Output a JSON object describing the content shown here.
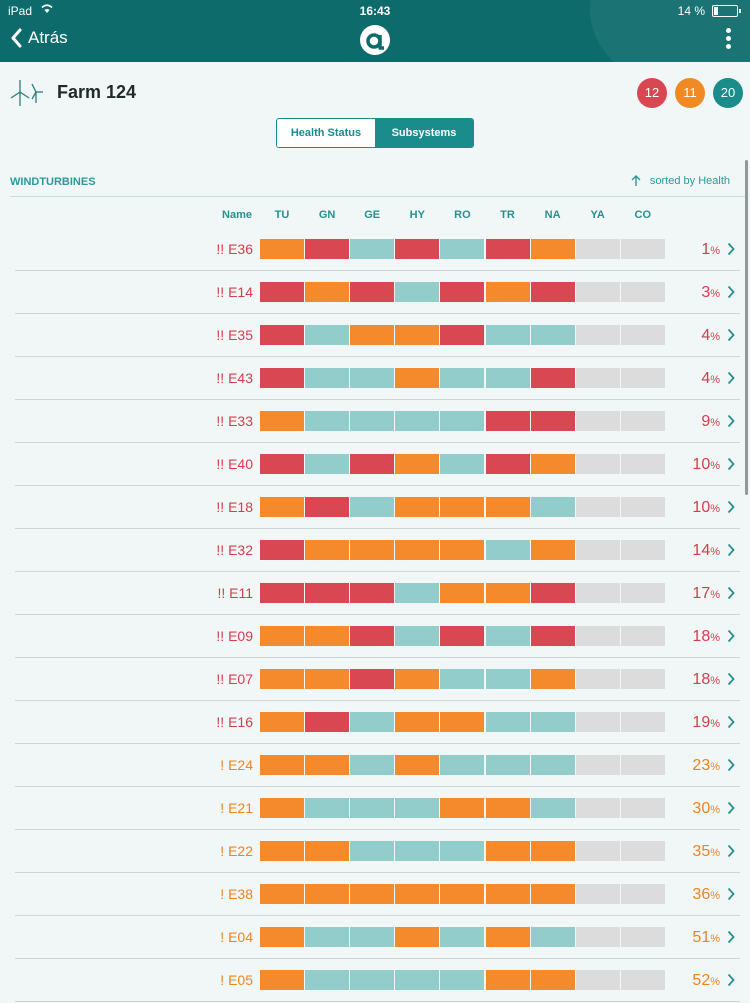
{
  "status_bar": {
    "device": "iPad",
    "time": "16:43",
    "battery": "14 %"
  },
  "header": {
    "back_label": "Atrás"
  },
  "farm": {
    "name": "Farm 124"
  },
  "badges": {
    "red": "12",
    "orange": "11",
    "teal": "20"
  },
  "tabs": {
    "health_status": "Health Status",
    "subsystems": "Subsystems",
    "active": "Subsystems"
  },
  "section": {
    "title": "WINDTURBINES",
    "sort_label": "sorted by Health"
  },
  "columns": {
    "name": "Name",
    "subsystems": [
      "TU",
      "GN",
      "GE",
      "HY",
      "RO",
      "TR",
      "NA",
      "YA",
      "CO"
    ]
  },
  "colors": {
    "red": "#d94752",
    "orange": "#f58a2c",
    "teal": "#92cccb",
    "gray": "#dcdcdc",
    "header": "#0e6b6b",
    "accent": "#1a8c8c"
  },
  "rows": [
    {
      "name": "!! E36",
      "level": "crit",
      "pct": "1",
      "cells": [
        "orange",
        "red",
        "teal",
        "red",
        "teal",
        "red",
        "orange",
        "gray",
        "gray"
      ]
    },
    {
      "name": "!! E14",
      "level": "crit",
      "pct": "3",
      "cells": [
        "red",
        "orange",
        "red",
        "teal",
        "red",
        "orange",
        "red",
        "gray",
        "gray"
      ]
    },
    {
      "name": "!! E35",
      "level": "crit",
      "pct": "4",
      "cells": [
        "red",
        "teal",
        "orange",
        "orange",
        "red",
        "teal",
        "teal",
        "gray",
        "gray"
      ]
    },
    {
      "name": "!! E43",
      "level": "crit",
      "pct": "4",
      "cells": [
        "red",
        "teal",
        "teal",
        "orange",
        "teal",
        "teal",
        "red",
        "gray",
        "gray"
      ]
    },
    {
      "name": "!! E33",
      "level": "crit",
      "pct": "9",
      "cells": [
        "orange",
        "teal",
        "teal",
        "teal",
        "teal",
        "red",
        "red",
        "gray",
        "gray"
      ]
    },
    {
      "name": "!! E40",
      "level": "crit",
      "pct": "10",
      "cells": [
        "red",
        "teal",
        "red",
        "orange",
        "teal",
        "red",
        "orange",
        "gray",
        "gray"
      ]
    },
    {
      "name": "!! E18",
      "level": "crit",
      "pct": "10",
      "cells": [
        "orange",
        "red",
        "teal",
        "orange",
        "orange",
        "orange",
        "teal",
        "gray",
        "gray"
      ]
    },
    {
      "name": "!! E32",
      "level": "crit",
      "pct": "14",
      "cells": [
        "red",
        "orange",
        "orange",
        "orange",
        "orange",
        "teal",
        "orange",
        "gray",
        "gray"
      ]
    },
    {
      "name": "!! E11",
      "level": "crit",
      "pct": "17",
      "cells": [
        "red",
        "red",
        "red",
        "teal",
        "orange",
        "orange",
        "red",
        "gray",
        "gray"
      ]
    },
    {
      "name": "!! E09",
      "level": "crit",
      "pct": "18",
      "cells": [
        "orange",
        "orange",
        "red",
        "teal",
        "red",
        "teal",
        "red",
        "gray",
        "gray"
      ]
    },
    {
      "name": "!! E07",
      "level": "crit",
      "pct": "18",
      "cells": [
        "orange",
        "orange",
        "red",
        "orange",
        "teal",
        "teal",
        "orange",
        "gray",
        "gray"
      ]
    },
    {
      "name": "!! E16",
      "level": "crit",
      "pct": "19",
      "cells": [
        "orange",
        "red",
        "teal",
        "orange",
        "orange",
        "teal",
        "teal",
        "gray",
        "gray"
      ]
    },
    {
      "name": "! E24",
      "level": "warn",
      "pct": "23",
      "cells": [
        "orange",
        "orange",
        "teal",
        "orange",
        "teal",
        "teal",
        "teal",
        "gray",
        "gray"
      ]
    },
    {
      "name": "! E21",
      "level": "warn",
      "pct": "30",
      "cells": [
        "orange",
        "teal",
        "teal",
        "teal",
        "orange",
        "orange",
        "teal",
        "gray",
        "gray"
      ]
    },
    {
      "name": "! E22",
      "level": "warn",
      "pct": "35",
      "cells": [
        "orange",
        "orange",
        "teal",
        "teal",
        "teal",
        "orange",
        "orange",
        "gray",
        "gray"
      ]
    },
    {
      "name": "! E38",
      "level": "warn",
      "pct": "36",
      "cells": [
        "orange",
        "orange",
        "orange",
        "orange",
        "orange",
        "orange",
        "orange",
        "gray",
        "gray"
      ]
    },
    {
      "name": "! E04",
      "level": "warn",
      "pct": "51",
      "cells": [
        "orange",
        "teal",
        "teal",
        "orange",
        "teal",
        "orange",
        "teal",
        "gray",
        "gray"
      ]
    },
    {
      "name": "! E05",
      "level": "warn",
      "pct": "52",
      "cells": [
        "orange",
        "teal",
        "teal",
        "teal",
        "teal",
        "orange",
        "orange",
        "gray",
        "gray"
      ]
    }
  ],
  "pct_unit": "%"
}
